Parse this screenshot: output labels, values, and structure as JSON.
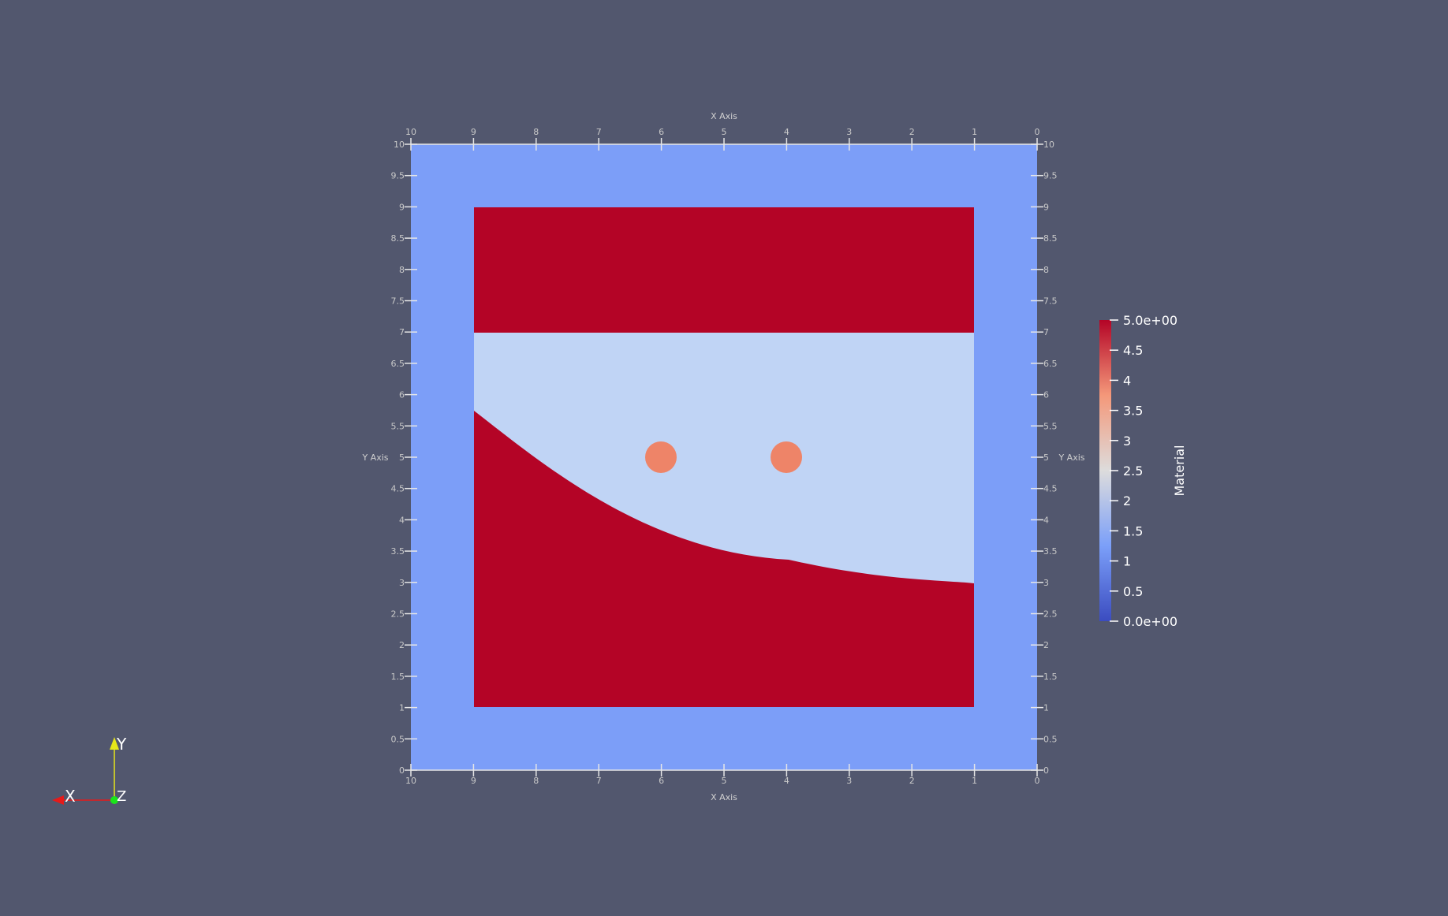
{
  "axes": {
    "x_title": "X Axis",
    "y_title": "Y Axis",
    "x_ticks": [
      "10",
      "9",
      "8",
      "7",
      "6",
      "5",
      "4",
      "3",
      "2",
      "1",
      "0"
    ],
    "y_ticks": [
      "10",
      "9.5",
      "9",
      "8.5",
      "8",
      "7.5",
      "7",
      "6.5",
      "6",
      "5.5",
      "5",
      "4.5",
      "4",
      "3.5",
      "3",
      "2.5",
      "2",
      "1.5",
      "1",
      "0.5",
      "0"
    ]
  },
  "colorbar": {
    "title": "Material",
    "ticks": [
      "5.0e+00",
      "4.5",
      "4",
      "3.5",
      "3",
      "2.5",
      "2",
      "1.5",
      "1",
      "0.5",
      "0.0e+00"
    ],
    "range": [
      0,
      5
    ]
  },
  "orientation": {
    "x_label": "X",
    "y_label": "Y",
    "z_label": "Z"
  },
  "colors": {
    "background": "#52576e",
    "material_1": "#7c9ef8",
    "material_2": "#c0d4f5",
    "material_4": "#ee8468",
    "material_5": "#b40426",
    "axis_grid": "#e6e6e6",
    "x_axis": "#e61a1a",
    "y_axis": "#e6e61a",
    "z_axis": "#1ae61a"
  }
}
